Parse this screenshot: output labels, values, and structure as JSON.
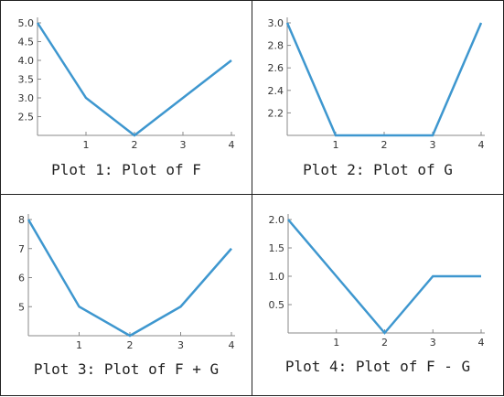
{
  "colors": {
    "series": "#3e97cf",
    "axis": "#888888",
    "border": "#222222"
  },
  "chart_data": [
    {
      "type": "line",
      "caption": "Plot 1: Plot of F",
      "x": [
        0,
        1,
        2,
        3,
        4
      ],
      "series": [
        {
          "values": [
            5.0,
            3.0,
            2.0,
            3.0,
            4.0
          ]
        }
      ],
      "xlim": [
        0,
        4
      ],
      "ylim": [
        2.0,
        5.0
      ],
      "xticks": [
        1,
        2,
        3,
        4
      ],
      "xtick_labels": [
        "1",
        "2",
        "3",
        "4"
      ],
      "yticks": [
        2.5,
        3.0,
        3.5,
        4.0,
        4.5,
        5.0
      ],
      "ytick_labels": [
        "2.5",
        "3.0",
        "3.5",
        "4.0",
        "4.5",
        "5.0"
      ],
      "grid": false
    },
    {
      "type": "line",
      "caption": "Plot 2: Plot of G",
      "x": [
        0,
        1,
        2,
        3,
        4
      ],
      "series": [
        {
          "values": [
            3.0,
            2.0,
            2.0,
            2.0,
            3.0
          ]
        }
      ],
      "xlim": [
        0,
        4
      ],
      "ylim": [
        2.0,
        3.0
      ],
      "xticks": [
        1,
        2,
        3,
        4
      ],
      "xtick_labels": [
        "1",
        "2",
        "3",
        "4"
      ],
      "yticks": [
        2.2,
        2.4,
        2.6,
        2.8,
        3.0
      ],
      "ytick_labels": [
        "2.2",
        "2.4",
        "2.6",
        "2.8",
        "3.0"
      ],
      "grid": false
    },
    {
      "type": "line",
      "caption": "Plot 3: Plot of F + G",
      "x": [
        0,
        1,
        2,
        3,
        4
      ],
      "series": [
        {
          "values": [
            8,
            5,
            4,
            5,
            7
          ]
        }
      ],
      "xlim": [
        0,
        4
      ],
      "ylim": [
        4,
        8
      ],
      "xticks": [
        1,
        2,
        3,
        4
      ],
      "xtick_labels": [
        "1",
        "2",
        "3",
        "4"
      ],
      "yticks": [
        5,
        6,
        7,
        8
      ],
      "ytick_labels": [
        "5",
        "6",
        "7",
        "8"
      ],
      "grid": false
    },
    {
      "type": "line",
      "caption": "Plot 4: Plot of F - G",
      "x": [
        0,
        1,
        2,
        3,
        4
      ],
      "series": [
        {
          "values": [
            2.0,
            1.0,
            0.0,
            1.0,
            1.0
          ]
        }
      ],
      "xlim": [
        0,
        4
      ],
      "ylim": [
        0.0,
        2.0
      ],
      "xticks": [
        1,
        2,
        3,
        4
      ],
      "xtick_labels": [
        "1",
        "2",
        "3",
        "4"
      ],
      "yticks": [
        0.5,
        1.0,
        1.5,
        2.0
      ],
      "ytick_labels": [
        "0.5",
        "1.0",
        "1.5",
        "2.0"
      ],
      "grid": false
    }
  ]
}
